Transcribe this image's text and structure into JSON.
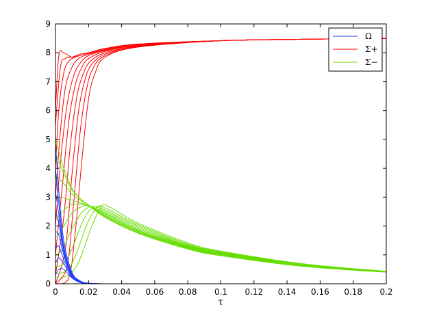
{
  "chart_data": {
    "type": "line",
    "title": "",
    "xlabel": "τ",
    "ylabel": "",
    "xlim": [
      0,
      0.2
    ],
    "ylim": [
      0,
      9
    ],
    "grid": false,
    "legend_placement": "top-right",
    "x_ticks": [
      "0",
      "0.02",
      "0.04",
      "0.06",
      "0.08",
      "0.1",
      "0.12",
      "0.14",
      "0.16",
      "0.18",
      "0.2"
    ],
    "y_ticks": [
      "0",
      "1",
      "2",
      "3",
      "4",
      "5",
      "6",
      "7",
      "8",
      "9"
    ],
    "legend": [
      {
        "name": "Ω",
        "color": "#1f3fff"
      },
      {
        "name": "Σ+",
        "color": "#ff0000"
      },
      {
        "name": "Σ−",
        "color": "#66dd00"
      }
    ],
    "series": [
      {
        "name": "Σ+",
        "color": "#ff0000",
        "x": [
          0,
          0.002,
          0.005,
          0.01,
          0.015,
          0.02,
          0.03,
          0.05,
          0.1,
          0.15,
          0.2
        ],
        "y": [
          6.0,
          7.9,
          8.0,
          7.85,
          7.95,
          8.0,
          8.15,
          8.3,
          8.42,
          8.47,
          8.5
        ]
      },
      {
        "name": "Σ+",
        "color": "#ff0000",
        "x": [
          0,
          0.003,
          0.006,
          0.01,
          0.015,
          0.02,
          0.03,
          0.05,
          0.1,
          0.15,
          0.2
        ],
        "y": [
          5.5,
          7.5,
          7.8,
          7.85,
          7.95,
          8.0,
          8.15,
          8.3,
          8.42,
          8.47,
          8.5
        ]
      },
      {
        "name": "Σ+",
        "color": "#ff0000",
        "x": [
          0,
          0.002,
          0.005,
          0.008,
          0.012,
          0.02,
          0.03,
          0.05,
          0.1,
          0.15,
          0.2
        ],
        "y": [
          4.0,
          6.0,
          7.3,
          7.7,
          7.85,
          7.98,
          8.12,
          8.3,
          8.42,
          8.47,
          8.5
        ]
      },
      {
        "name": "Σ+",
        "color": "#ff0000",
        "x": [
          0,
          0.003,
          0.006,
          0.01,
          0.014,
          0.02,
          0.03,
          0.05,
          0.1,
          0.15,
          0.2
        ],
        "y": [
          3.0,
          5.3,
          6.8,
          7.5,
          7.8,
          7.95,
          8.1,
          8.28,
          8.42,
          8.47,
          8.5
        ]
      },
      {
        "name": "Σ+",
        "color": "#ff0000",
        "x": [
          0,
          0.003,
          0.007,
          0.011,
          0.015,
          0.02,
          0.03,
          0.05,
          0.1,
          0.15,
          0.2
        ],
        "y": [
          2.0,
          4.2,
          6.2,
          7.2,
          7.65,
          7.9,
          8.08,
          8.27,
          8.42,
          8.47,
          8.5
        ]
      },
      {
        "name": "Σ+",
        "color": "#ff0000",
        "x": [
          0,
          0.004,
          0.008,
          0.012,
          0.016,
          0.02,
          0.03,
          0.05,
          0.1,
          0.15,
          0.2
        ],
        "y": [
          1.0,
          3.3,
          5.6,
          6.9,
          7.5,
          7.8,
          8.05,
          8.25,
          8.42,
          8.47,
          8.5
        ]
      },
      {
        "name": "Σ+",
        "color": "#ff0000",
        "x": [
          0,
          0.005,
          0.009,
          0.013,
          0.017,
          0.021,
          0.03,
          0.05,
          0.1,
          0.15,
          0.2
        ],
        "y": [
          0.3,
          2.3,
          4.8,
          6.5,
          7.3,
          7.7,
          8.0,
          8.23,
          8.42,
          8.47,
          8.5
        ]
      },
      {
        "name": "Σ+",
        "color": "#ff0000",
        "x": [
          0,
          0.006,
          0.01,
          0.014,
          0.018,
          0.022,
          0.03,
          0.05,
          0.1,
          0.15,
          0.2
        ],
        "y": [
          0.0,
          1.2,
          3.8,
          6.0,
          7.1,
          7.6,
          7.95,
          8.22,
          8.42,
          8.47,
          8.5
        ]
      },
      {
        "name": "Σ+",
        "color": "#ff0000",
        "x": [
          0,
          0.007,
          0.011,
          0.015,
          0.019,
          0.023,
          0.03,
          0.05,
          0.1,
          0.15,
          0.2
        ],
        "y": [
          0.0,
          0.6,
          2.8,
          5.3,
          6.8,
          7.5,
          7.9,
          8.2,
          8.42,
          8.47,
          8.5
        ]
      },
      {
        "name": "Σ+",
        "color": "#ff0000",
        "x": [
          0,
          0.008,
          0.012,
          0.016,
          0.02,
          0.024,
          0.03,
          0.05,
          0.1,
          0.15,
          0.2
        ],
        "y": [
          0.0,
          0.2,
          1.8,
          4.3,
          6.4,
          7.3,
          7.85,
          8.2,
          8.42,
          8.47,
          8.5
        ]
      },
      {
        "name": "Σ−",
        "color": "#66dd00",
        "x": [
          0,
          0.002,
          0.005,
          0.01,
          0.015,
          0.02,
          0.03,
          0.05,
          0.08,
          0.1,
          0.15,
          0.2
        ],
        "y": [
          5.0,
          4.6,
          4.0,
          3.3,
          2.95,
          2.72,
          2.3,
          1.75,
          1.2,
          0.97,
          0.6,
          0.4
        ]
      },
      {
        "name": "Σ−",
        "color": "#66dd00",
        "x": [
          0,
          0.003,
          0.006,
          0.01,
          0.015,
          0.02,
          0.03,
          0.05,
          0.08,
          0.1,
          0.15,
          0.2
        ],
        "y": [
          4.5,
          4.1,
          3.7,
          3.25,
          2.95,
          2.72,
          2.32,
          1.77,
          1.22,
          0.98,
          0.61,
          0.4
        ]
      },
      {
        "name": "Σ−",
        "color": "#66dd00",
        "x": [
          0,
          0.003,
          0.006,
          0.01,
          0.015,
          0.02,
          0.03,
          0.05,
          0.08,
          0.1,
          0.15,
          0.2
        ],
        "y": [
          3.8,
          3.6,
          3.4,
          3.1,
          2.9,
          2.73,
          2.35,
          1.8,
          1.24,
          1.0,
          0.62,
          0.41
        ]
      },
      {
        "name": "Σ−",
        "color": "#66dd00",
        "x": [
          0,
          0.003,
          0.006,
          0.01,
          0.015,
          0.02,
          0.03,
          0.05,
          0.08,
          0.1,
          0.15,
          0.2
        ],
        "y": [
          3.0,
          3.0,
          2.95,
          2.9,
          2.8,
          2.72,
          2.38,
          1.83,
          1.26,
          1.02,
          0.63,
          0.41
        ]
      },
      {
        "name": "Σ−",
        "color": "#66dd00",
        "x": [
          0,
          0.003,
          0.006,
          0.01,
          0.015,
          0.02,
          0.03,
          0.05,
          0.08,
          0.1,
          0.15,
          0.2
        ],
        "y": [
          2.2,
          2.4,
          2.6,
          2.75,
          2.75,
          2.72,
          2.42,
          1.86,
          1.28,
          1.03,
          0.64,
          0.42
        ]
      },
      {
        "name": "Σ−",
        "color": "#66dd00",
        "x": [
          0,
          0.003,
          0.006,
          0.01,
          0.015,
          0.02,
          0.03,
          0.05,
          0.08,
          0.1,
          0.15,
          0.2
        ],
        "y": [
          1.6,
          1.8,
          2.1,
          2.45,
          2.65,
          2.7,
          2.45,
          1.9,
          1.3,
          1.05,
          0.65,
          0.42
        ]
      },
      {
        "name": "Σ−",
        "color": "#66dd00",
        "x": [
          0,
          0.003,
          0.006,
          0.01,
          0.015,
          0.02,
          0.025,
          0.03,
          0.05,
          0.08,
          0.1,
          0.15,
          0.2
        ],
        "y": [
          1.0,
          1.1,
          1.4,
          1.9,
          2.4,
          2.65,
          2.65,
          2.5,
          1.95,
          1.32,
          1.07,
          0.66,
          0.42
        ]
      },
      {
        "name": "Σ−",
        "color": "#66dd00",
        "x": [
          0,
          0.004,
          0.008,
          0.012,
          0.016,
          0.02,
          0.025,
          0.03,
          0.05,
          0.08,
          0.1,
          0.15,
          0.2
        ],
        "y": [
          0.6,
          0.65,
          0.95,
          1.5,
          2.1,
          2.5,
          2.68,
          2.55,
          2.0,
          1.35,
          1.09,
          0.67,
          0.43
        ]
      },
      {
        "name": "Σ−",
        "color": "#66dd00",
        "x": [
          0,
          0.005,
          0.009,
          0.013,
          0.017,
          0.021,
          0.026,
          0.03,
          0.05,
          0.08,
          0.1,
          0.15,
          0.2
        ],
        "y": [
          0.35,
          0.4,
          0.6,
          1.1,
          1.75,
          2.3,
          2.68,
          2.62,
          2.05,
          1.38,
          1.11,
          0.68,
          0.43
        ]
      },
      {
        "name": "Σ−",
        "color": "#66dd00",
        "x": [
          0,
          0.006,
          0.01,
          0.014,
          0.018,
          0.022,
          0.028,
          0.032,
          0.05,
          0.08,
          0.1,
          0.15,
          0.2
        ],
        "y": [
          0.2,
          0.25,
          0.4,
          0.75,
          1.35,
          2.0,
          2.7,
          2.68,
          2.1,
          1.42,
          1.13,
          0.69,
          0.43
        ]
      },
      {
        "name": "Ω",
        "color": "#1f3fff",
        "x": [
          0,
          0.002,
          0.005,
          0.01,
          0.015,
          0.02,
          0.03,
          0.05,
          0.1,
          0.2
        ],
        "y": [
          4.9,
          3.2,
          1.5,
          0.4,
          0.1,
          0.02,
          0.0,
          0.0,
          0.0,
          0.0
        ]
      },
      {
        "name": "Ω",
        "color": "#1f3fff",
        "x": [
          0,
          0.002,
          0.005,
          0.01,
          0.015,
          0.02,
          0.03,
          0.05,
          0.1,
          0.2
        ],
        "y": [
          4.0,
          2.8,
          1.3,
          0.35,
          0.08,
          0.02,
          0.0,
          0.0,
          0.0,
          0.0
        ]
      },
      {
        "name": "Ω",
        "color": "#1f3fff",
        "x": [
          0,
          0.002,
          0.005,
          0.01,
          0.015,
          0.02,
          0.03,
          0.05,
          0.1,
          0.2
        ],
        "y": [
          3.2,
          2.4,
          1.2,
          0.32,
          0.07,
          0.01,
          0.0,
          0.0,
          0.0,
          0.0
        ]
      },
      {
        "name": "Ω",
        "color": "#1f3fff",
        "x": [
          0,
          0.002,
          0.005,
          0.01,
          0.015,
          0.02,
          0.03,
          0.05,
          0.1,
          0.2
        ],
        "y": [
          2.5,
          2.1,
          1.1,
          0.3,
          0.06,
          0.01,
          0.0,
          0.0,
          0.0,
          0.0
        ]
      },
      {
        "name": "Ω",
        "color": "#1f3fff",
        "x": [
          0,
          0.002,
          0.005,
          0.01,
          0.015,
          0.02,
          0.03,
          0.05,
          0.1,
          0.2
        ],
        "y": [
          1.8,
          1.7,
          1.0,
          0.28,
          0.05,
          0.01,
          0.0,
          0.0,
          0.0,
          0.0
        ]
      },
      {
        "name": "Ω",
        "color": "#1f3fff",
        "x": [
          0,
          0.002,
          0.005,
          0.01,
          0.015,
          0.02,
          0.03,
          0.05,
          0.1,
          0.2
        ],
        "y": [
          1.2,
          1.3,
          0.85,
          0.25,
          0.05,
          0.01,
          0.0,
          0.0,
          0.0,
          0.0
        ]
      },
      {
        "name": "Ω",
        "color": "#1f3fff",
        "x": [
          0,
          0.002,
          0.005,
          0.01,
          0.015,
          0.02,
          0.03,
          0.05,
          0.1,
          0.2
        ],
        "y": [
          0.7,
          0.9,
          0.7,
          0.22,
          0.04,
          0.01,
          0.0,
          0.0,
          0.0,
          0.0
        ]
      },
      {
        "name": "Ω",
        "color": "#1f3fff",
        "x": [
          0,
          0.002,
          0.005,
          0.01,
          0.015,
          0.02,
          0.03,
          0.05,
          0.1,
          0.2
        ],
        "y": [
          0.3,
          0.5,
          0.5,
          0.2,
          0.04,
          0.01,
          0.0,
          0.0,
          0.0,
          0.0
        ]
      }
    ]
  }
}
